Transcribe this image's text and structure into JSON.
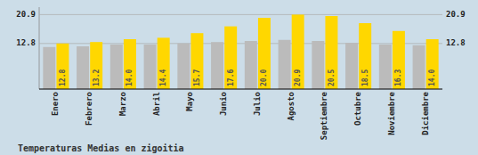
{
  "chart_data": {
    "type": "bar",
    "title": "Temperaturas Medias en zigoitia",
    "categories": [
      "Enero",
      "Febrero",
      "Marzo",
      "Abril",
      "Mayo",
      "Junio",
      "Julio",
      "Agosto",
      "Septiembre",
      "Octubre",
      "Noviembre",
      "Diciembre"
    ],
    "series": [
      {
        "color": "#BBBBBB",
        "values": [
          11.8,
          12.0,
          12.5,
          12.5,
          12.8,
          13.2,
          13.5,
          13.8,
          13.5,
          13.0,
          12.5,
          12.3
        ]
      },
      {
        "color": "#FFD700",
        "values": [
          12.8,
          13.2,
          14.0,
          14.4,
          15.7,
          17.6,
          20.0,
          20.9,
          20.5,
          18.5,
          16.3,
          14.0
        ],
        "value_labels": [
          "12.8",
          "13.2",
          "14.0",
          "14.4",
          "15.7",
          "17.6",
          "20.0",
          "20.9",
          "20.5",
          "18.5",
          "16.3",
          "14.0"
        ],
        "data_labels": true
      }
    ],
    "ylim": [
      0,
      23.0
    ],
    "yticks": [
      12.8,
      20.9
    ],
    "grid": true
  }
}
